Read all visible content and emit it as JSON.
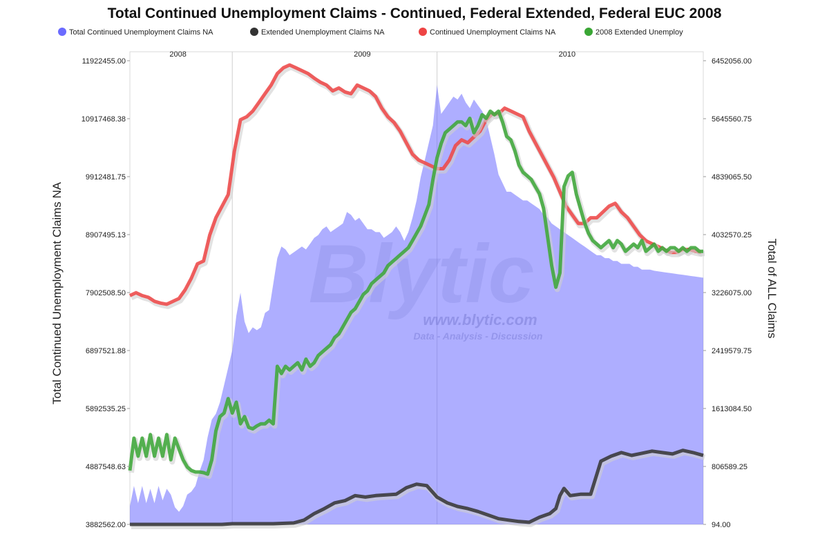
{
  "chart_data": {
    "type": "line",
    "title": "Total Continued Unemployment Claims - Continued, Federal Extended, Federal EUC 2008",
    "ylabel_left": "Total Continued Unemployment Claims NA",
    "ylabel_right": "Total of ALL Claims",
    "left_ticks": [
      "3882562.00",
      "4887548.63",
      "5892535.25",
      "6897521.88",
      "7902508.50",
      "8907495.13",
      "9912481.75",
      "10917468.38",
      "11922455.00"
    ],
    "right_ticks": [
      "94.00",
      "806589.25",
      "1613084.50",
      "2419579.75",
      "3226075.00",
      "4032570.25",
      "4839065.50",
      "5645560.75",
      "6452056.00"
    ],
    "ylim_left": [
      3882562.0,
      11922455.0
    ],
    "ylim_right": [
      94.0,
      6452056.0
    ],
    "years": [
      {
        "label": "2008",
        "x": 0.1
      },
      {
        "label": "2009",
        "x": 1.0
      },
      {
        "label": "2010",
        "x": 2.0
      }
    ],
    "xlim": [
      0,
      2.8
    ],
    "year_dividers": [
      0.5,
      1.5
    ],
    "series": [
      {
        "name": "Total Continued Unemployment Claims NA",
        "color": "#6b6bff",
        "axis": "left",
        "kind": "area",
        "x": [
          0.0,
          0.02,
          0.04,
          0.06,
          0.08,
          0.1,
          0.12,
          0.14,
          0.16,
          0.18,
          0.2,
          0.22,
          0.24,
          0.26,
          0.28,
          0.3,
          0.32,
          0.34,
          0.36,
          0.38,
          0.4,
          0.42,
          0.44,
          0.46,
          0.48,
          0.5,
          0.52,
          0.54,
          0.56,
          0.58,
          0.6,
          0.62,
          0.64,
          0.66,
          0.68,
          0.7,
          0.72,
          0.74,
          0.76,
          0.78,
          0.8,
          0.82,
          0.84,
          0.86,
          0.88,
          0.9,
          0.92,
          0.94,
          0.96,
          0.98,
          1.0,
          1.02,
          1.04,
          1.06,
          1.08,
          1.1,
          1.12,
          1.14,
          1.16,
          1.18,
          1.2,
          1.22,
          1.24,
          1.26,
          1.28,
          1.3,
          1.32,
          1.34,
          1.36,
          1.38,
          1.4,
          1.42,
          1.44,
          1.46,
          1.48,
          1.5,
          1.52,
          1.54,
          1.56,
          1.58,
          1.6,
          1.62,
          1.64,
          1.66,
          1.68,
          1.7,
          1.72,
          1.74,
          1.76,
          1.78,
          1.8,
          1.82,
          1.84,
          1.86,
          1.88,
          1.9,
          1.92,
          1.94,
          1.96,
          1.98,
          2.0,
          2.02,
          2.04,
          2.06,
          2.08,
          2.1,
          2.12,
          2.14,
          2.16,
          2.18,
          2.2,
          2.22,
          2.24,
          2.26,
          2.28,
          2.3,
          2.32,
          2.34,
          2.36,
          2.38,
          2.4,
          2.42,
          2.44,
          2.46,
          2.48,
          2.5,
          2.52,
          2.54,
          2.56,
          2.58,
          2.6,
          2.62,
          2.64,
          2.66,
          2.68,
          2.7,
          2.72,
          2.74,
          2.76,
          2.78,
          2.8
        ],
        "y": [
          4200000,
          4550000,
          4250000,
          4550000,
          4250000,
          4500000,
          4250000,
          4550000,
          4300000,
          4500000,
          4400000,
          4180000,
          4100000,
          4200000,
          4400000,
          4450000,
          4550000,
          4800000,
          5000000,
          5400000,
          5700000,
          5800000,
          6000000,
          6300000,
          6600000,
          6900000,
          7500000,
          7900000,
          7400000,
          7200000,
          7300000,
          7250000,
          7300000,
          7550000,
          7600000,
          8050000,
          8500000,
          8700000,
          8650000,
          8550000,
          8600000,
          8650000,
          8700000,
          8650000,
          8750000,
          8850000,
          8900000,
          9000000,
          9050000,
          8950000,
          9000000,
          9050000,
          9100000,
          9300000,
          9250000,
          9150000,
          9200000,
          9100000,
          9000000,
          9000000,
          8950000,
          8950000,
          8850000,
          8900000,
          8950000,
          9050000,
          8950000,
          8800000,
          8950000,
          9200000,
          9500000,
          9900000,
          10200000,
          10500000,
          10800000,
          11500000,
          11000000,
          11100000,
          11200000,
          11300000,
          11250000,
          11350000,
          11200000,
          11100000,
          11250000,
          11150000,
          11050000,
          10900000,
          10600000,
          10300000,
          9950000,
          9800000,
          9650000,
          9650000,
          9600000,
          9550000,
          9500000,
          9500000,
          9450000,
          9400000,
          9350000,
          9250000,
          9200000,
          9100000,
          9050000,
          9000000,
          8950000,
          8900000,
          8850000,
          8800000,
          8750000,
          8700000,
          8650000,
          8600000,
          8550000,
          8550000,
          8500000,
          8500000,
          8450000,
          8450000,
          8400000,
          8400000,
          8400000,
          8350000,
          8350000,
          8300000,
          8300000,
          8300000,
          8280000,
          8270000,
          8260000,
          8250000,
          8240000,
          8230000,
          8220000,
          8210000,
          8200000,
          8190000,
          8180000,
          8170000,
          8160000
        ]
      },
      {
        "name": "Extended Unemployment Claims NA",
        "color": "#333333",
        "axis": "right",
        "kind": "line",
        "x": [
          0.0,
          0.1,
          0.2,
          0.3,
          0.4,
          0.45,
          0.5,
          0.6,
          0.7,
          0.8,
          0.85,
          0.9,
          0.95,
          1.0,
          1.05,
          1.1,
          1.15,
          1.2,
          1.25,
          1.3,
          1.35,
          1.4,
          1.45,
          1.5,
          1.55,
          1.6,
          1.65,
          1.7,
          1.75,
          1.8,
          1.85,
          1.9,
          1.95,
          2.0,
          2.05,
          2.08,
          2.1,
          2.12,
          2.15,
          2.2,
          2.25,
          2.3,
          2.35,
          2.4,
          2.45,
          2.5,
          2.55,
          2.6,
          2.65,
          2.7,
          2.75,
          2.8
        ],
        "y": [
          0,
          0,
          0,
          0,
          0,
          0,
          10000,
          10000,
          10000,
          20000,
          60000,
          150000,
          220000,
          300000,
          330000,
          400000,
          380000,
          400000,
          410000,
          420000,
          510000,
          560000,
          540000,
          380000,
          300000,
          250000,
          220000,
          180000,
          130000,
          80000,
          60000,
          40000,
          30000,
          100000,
          150000,
          220000,
          400000,
          500000,
          400000,
          420000,
          420000,
          880000,
          950000,
          1000000,
          960000,
          990000,
          1020000,
          1000000,
          980000,
          1030000,
          1000000,
          960000
        ]
      },
      {
        "name": "Continued Unemployment Claims NA",
        "color": "#ee4444",
        "axis": "left",
        "kind": "line",
        "x": [
          0.0,
          0.03,
          0.06,
          0.09,
          0.12,
          0.15,
          0.18,
          0.21,
          0.24,
          0.27,
          0.3,
          0.33,
          0.36,
          0.39,
          0.42,
          0.45,
          0.48,
          0.51,
          0.54,
          0.57,
          0.6,
          0.63,
          0.66,
          0.69,
          0.72,
          0.75,
          0.78,
          0.81,
          0.84,
          0.87,
          0.9,
          0.93,
          0.96,
          0.99,
          1.02,
          1.05,
          1.08,
          1.11,
          1.14,
          1.17,
          1.2,
          1.23,
          1.26,
          1.29,
          1.32,
          1.35,
          1.38,
          1.41,
          1.44,
          1.47,
          1.5,
          1.53,
          1.56,
          1.59,
          1.62,
          1.65,
          1.68,
          1.71,
          1.74,
          1.77,
          1.8,
          1.83,
          1.86,
          1.89,
          1.92,
          1.95,
          1.98,
          2.01,
          2.04,
          2.07,
          2.1,
          2.13,
          2.16,
          2.19,
          2.22,
          2.25,
          2.28,
          2.31,
          2.34,
          2.37,
          2.4,
          2.43,
          2.46,
          2.49,
          2.52,
          2.55,
          2.58,
          2.61,
          2.64,
          2.67,
          2.7,
          2.73,
          2.76,
          2.79
        ],
        "y": [
          7850000,
          7900000,
          7850000,
          7820000,
          7750000,
          7720000,
          7700000,
          7750000,
          7800000,
          7950000,
          8150000,
          8400000,
          8450000,
          8900000,
          9200000,
          9400000,
          9600000,
          10350000,
          10900000,
          10950000,
          11050000,
          11200000,
          11350000,
          11500000,
          11700000,
          11800000,
          11850000,
          11800000,
          11750000,
          11700000,
          11620000,
          11550000,
          11500000,
          11400000,
          11450000,
          11380000,
          11350000,
          11500000,
          11450000,
          11400000,
          11300000,
          11100000,
          10950000,
          10850000,
          10700000,
          10500000,
          10300000,
          10200000,
          10150000,
          10100000,
          10050000,
          10050000,
          10200000,
          10450000,
          10550000,
          10500000,
          10600000,
          10700000,
          10900000,
          11000000,
          11000000,
          11100000,
          11050000,
          11000000,
          10950000,
          10700000,
          10500000,
          10300000,
          10100000,
          9900000,
          9650000,
          9400000,
          9250000,
          9100000,
          9100000,
          9200000,
          9200000,
          9300000,
          9400000,
          9450000,
          9300000,
          9200000,
          9050000,
          8900000,
          8800000,
          8750000,
          8700000,
          8650000,
          8600000,
          8600000,
          8650000,
          8650000,
          8620000,
          8600000
        ]
      },
      {
        "name": "2008 Extended Unemploy",
        "color": "#3aa635",
        "axis": "right",
        "kind": "line",
        "x": [
          0.0,
          0.02,
          0.04,
          0.06,
          0.08,
          0.1,
          0.12,
          0.14,
          0.16,
          0.18,
          0.2,
          0.22,
          0.24,
          0.26,
          0.28,
          0.3,
          0.32,
          0.34,
          0.36,
          0.38,
          0.4,
          0.42,
          0.44,
          0.46,
          0.48,
          0.5,
          0.52,
          0.54,
          0.56,
          0.58,
          0.6,
          0.62,
          0.64,
          0.66,
          0.68,
          0.7,
          0.72,
          0.74,
          0.76,
          0.78,
          0.8,
          0.82,
          0.84,
          0.86,
          0.88,
          0.9,
          0.92,
          0.94,
          0.96,
          0.98,
          1.0,
          1.02,
          1.04,
          1.06,
          1.08,
          1.1,
          1.12,
          1.14,
          1.16,
          1.18,
          1.2,
          1.22,
          1.24,
          1.26,
          1.28,
          1.3,
          1.32,
          1.34,
          1.36,
          1.38,
          1.4,
          1.42,
          1.44,
          1.46,
          1.48,
          1.5,
          1.52,
          1.54,
          1.56,
          1.58,
          1.6,
          1.62,
          1.64,
          1.66,
          1.68,
          1.7,
          1.72,
          1.74,
          1.76,
          1.78,
          1.8,
          1.82,
          1.84,
          1.86,
          1.88,
          1.9,
          1.92,
          1.94,
          1.96,
          1.98,
          2.0,
          2.02,
          2.04,
          2.06,
          2.08,
          2.1,
          2.12,
          2.14,
          2.16,
          2.18,
          2.2,
          2.22,
          2.24,
          2.26,
          2.28,
          2.3,
          2.32,
          2.34,
          2.36,
          2.38,
          2.4,
          2.42,
          2.44,
          2.46,
          2.48,
          2.5,
          2.52,
          2.54,
          2.56,
          2.58,
          2.6,
          2.62,
          2.64,
          2.66,
          2.68,
          2.7,
          2.72,
          2.74,
          2.76,
          2.78,
          2.8
        ],
        "y": [
          750000,
          1200000,
          950000,
          1200000,
          950000,
          1250000,
          950000,
          1200000,
          950000,
          1250000,
          900000,
          1200000,
          1050000,
          900000,
          800000,
          750000,
          730000,
          730000,
          720000,
          700000,
          900000,
          1300000,
          1500000,
          1550000,
          1750000,
          1550000,
          1700000,
          1400000,
          1500000,
          1350000,
          1330000,
          1370000,
          1400000,
          1400000,
          1450000,
          1400000,
          2200000,
          2100000,
          2200000,
          2150000,
          2200000,
          2250000,
          2150000,
          2300000,
          2200000,
          2250000,
          2350000,
          2400000,
          2450000,
          2500000,
          2600000,
          2650000,
          2750000,
          2850000,
          2950000,
          3000000,
          3100000,
          3200000,
          3250000,
          3350000,
          3400000,
          3450000,
          3500000,
          3600000,
          3650000,
          3700000,
          3750000,
          3800000,
          3850000,
          3950000,
          4050000,
          4150000,
          4300000,
          4450000,
          4800000,
          5100000,
          5300000,
          5450000,
          5500000,
          5550000,
          5600000,
          5600000,
          5550000,
          5650000,
          5450000,
          5550000,
          5700000,
          5650000,
          5750000,
          5700000,
          5750000,
          5600000,
          5400000,
          5350000,
          5200000,
          5000000,
          4900000,
          4850000,
          4800000,
          4700000,
          4600000,
          4400000,
          4000000,
          3600000,
          3300000,
          3500000,
          4700000,
          4850000,
          4900000,
          4600000,
          4400000,
          4200000,
          4050000,
          3950000,
          3900000,
          3850000,
          3900000,
          3950000,
          3850000,
          3950000,
          3900000,
          3800000,
          3850000,
          3900000,
          3850000,
          3950000,
          3800000,
          3850000,
          3900000,
          3800000,
          3850000,
          3800000,
          3850000,
          3850000,
          3800000,
          3850000,
          3800000,
          3850000,
          3850000,
          3800000,
          3800000
        ]
      }
    ],
    "watermark": {
      "brand": "Blytic",
      "url": "www.blytic.com",
      "tagline": "Data - Analysis - Discussion"
    }
  }
}
